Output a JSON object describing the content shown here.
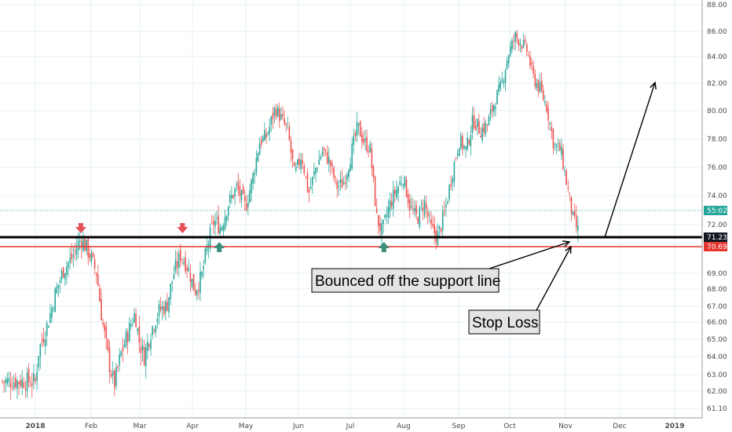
{
  "chart_data": {
    "type": "candlestick",
    "title": "",
    "y_range": [
      60.6,
      88.2
    ],
    "y_ticks": [
      "88.00",
      "86.00",
      "84.00",
      "82.00",
      "80.00",
      "78.00",
      "76.00",
      "74.00",
      "72.00",
      "69.00",
      "68.00",
      "67.00",
      "66.00",
      "65.00",
      "64.00",
      "63.00",
      "62.00",
      "61.10"
    ],
    "x_labels": [
      "2018",
      "Feb",
      "Mar",
      "Apr",
      "May",
      "Jun",
      "Jul",
      "Aug",
      "Sep",
      "Oct",
      "Nov",
      "Dec",
      "2019"
    ],
    "close_path": [
      [
        "2018-01-01",
        62.6
      ],
      [
        "2018-01-03",
        64.4
      ],
      [
        "2018-01-08",
        65.9
      ],
      [
        "2018-01-12",
        67.6
      ],
      [
        "2018-01-17",
        69.2
      ],
      [
        "2018-01-22",
        70.0
      ],
      [
        "2018-01-27",
        71.2
      ],
      [
        "2018-02-01",
        70.2
      ],
      [
        "2018-02-05",
        69.0
      ],
      [
        "2018-02-08",
        66.2
      ],
      [
        "2018-02-12",
        63.7
      ],
      [
        "2018-02-15",
        62.4
      ],
      [
        "2018-02-19",
        64.2
      ],
      [
        "2018-02-23",
        65.4
      ],
      [
        "2018-02-27",
        66.6
      ],
      [
        "2018-03-01",
        65.0
      ],
      [
        "2018-03-04",
        64.0
      ],
      [
        "2018-03-08",
        65.5
      ],
      [
        "2018-03-13",
        66.8
      ],
      [
        "2018-03-17",
        67.0
      ],
      [
        "2018-03-21",
        69.0
      ],
      [
        "2018-03-25",
        70.2
      ],
      [
        "2018-03-29",
        69.4
      ],
      [
        "2018-04-02",
        67.9
      ],
      [
        "2018-04-06",
        68.8
      ],
      [
        "2018-04-09",
        70.6
      ],
      [
        "2018-04-13",
        72.3
      ],
      [
        "2018-04-17",
        71.8
      ],
      [
        "2018-04-21",
        73.4
      ],
      [
        "2018-04-26",
        74.6
      ],
      [
        "2018-05-01",
        73.2
      ],
      [
        "2018-05-05",
        75.2
      ],
      [
        "2018-05-09",
        77.8
      ],
      [
        "2018-05-13",
        78.2
      ],
      [
        "2018-05-18",
        80.2
      ],
      [
        "2018-05-22",
        79.3
      ],
      [
        "2018-05-25",
        78.6
      ],
      [
        "2018-05-29",
        75.4
      ],
      [
        "2018-06-02",
        76.9
      ],
      [
        "2018-06-06",
        74.1
      ],
      [
        "2018-06-10",
        75.9
      ],
      [
        "2018-06-14",
        77.2
      ],
      [
        "2018-06-18",
        76.4
      ],
      [
        "2018-06-22",
        74.6
      ],
      [
        "2018-06-26",
        74.9
      ],
      [
        "2018-06-30",
        76.8
      ],
      [
        "2018-07-04",
        78.9
      ],
      [
        "2018-07-08",
        77.7
      ],
      [
        "2018-07-11",
        77.4
      ],
      [
        "2018-07-15",
        72.4
      ],
      [
        "2018-07-18",
        71.5
      ],
      [
        "2018-07-22",
        73.3
      ],
      [
        "2018-07-26",
        74.4
      ],
      [
        "2018-07-30",
        75.3
      ],
      [
        "2018-08-03",
        73.2
      ],
      [
        "2018-08-07",
        72.4
      ],
      [
        "2018-08-11",
        73.6
      ],
      [
        "2018-08-15",
        71.7
      ],
      [
        "2018-08-19",
        71.3
      ],
      [
        "2018-08-23",
        73.0
      ],
      [
        "2018-08-27",
        75.6
      ],
      [
        "2018-08-31",
        77.9
      ],
      [
        "2018-09-04",
        77.2
      ],
      [
        "2018-09-08",
        79.4
      ],
      [
        "2018-09-12",
        78.6
      ],
      [
        "2018-09-16",
        79.0
      ],
      [
        "2018-09-20",
        80.6
      ],
      [
        "2018-09-24",
        81.8
      ],
      [
        "2018-09-28",
        84.2
      ],
      [
        "2018-10-02",
        85.6
      ],
      [
        "2018-10-05",
        85.2
      ],
      [
        "2018-10-09",
        84.4
      ],
      [
        "2018-10-12",
        82.5
      ],
      [
        "2018-10-16",
        81.6
      ],
      [
        "2018-10-20",
        80.3
      ],
      [
        "2018-10-24",
        77.6
      ],
      [
        "2018-10-28",
        77.2
      ],
      [
        "2018-11-01",
        74.4
      ],
      [
        "2018-11-04",
        72.4
      ],
      [
        "2018-11-07",
        71.5
      ]
    ],
    "horizontal_lines": [
      {
        "role": "support",
        "value": 71.23,
        "color": "#000000"
      },
      {
        "role": "stop",
        "value": 70.69,
        "color": "#e5352f"
      },
      {
        "role": "last",
        "value": 73.0,
        "color": "#26a69a"
      }
    ],
    "price_labels": [
      {
        "text": "55:02",
        "value": 73.0,
        "color": "#26a69a"
      },
      {
        "text": "71.23",
        "value": 71.23,
        "color": "#131722"
      },
      {
        "text": "70.69",
        "value": 70.69,
        "color": "#e5352f"
      }
    ],
    "markers": [
      {
        "type": "down",
        "date": "2018-01-27",
        "color": "#e5535a"
      },
      {
        "type": "down",
        "date": "2018-03-26",
        "color": "#e5535a"
      },
      {
        "type": "up",
        "date": "2018-04-16",
        "color": "#3d8f7c"
      },
      {
        "type": "up",
        "date": "2018-07-19",
        "color": "#3d8f7c"
      }
    ],
    "annotations": [
      {
        "text": "Bounced off the support line"
      },
      {
        "text": "Stop Loss"
      }
    ],
    "colors": {
      "up": "#26a69a",
      "down": "#ef5350",
      "grid": "#e6f1f7"
    }
  }
}
